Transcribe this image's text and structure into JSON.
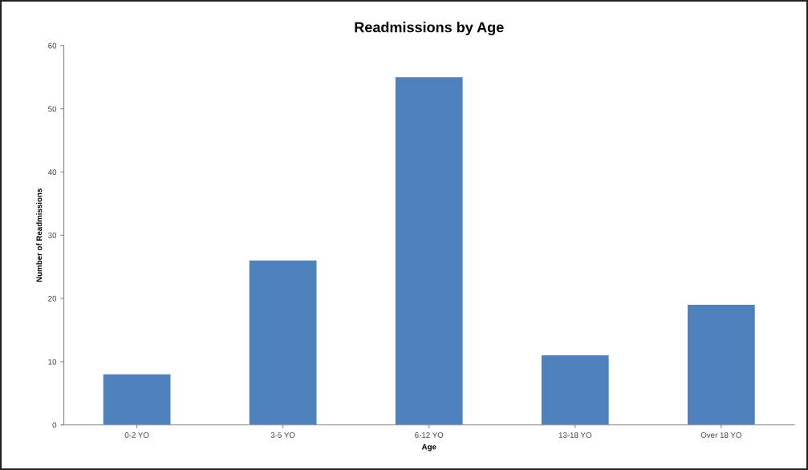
{
  "chart_data": {
    "type": "bar",
    "title": "Readmissions by Age",
    "xlabel": "Age",
    "ylabel": "Number of Readmissions",
    "categories": [
      "0-2 YO",
      "3-5 YO",
      "6-12 YO",
      "13-18 YO",
      "Over 18 YO"
    ],
    "values": [
      8,
      26,
      55,
      11,
      19
    ],
    "color": "#4f81bd",
    "ylim": [
      0,
      60
    ],
    "yticks": [
      0,
      10,
      20,
      30,
      40,
      50,
      60
    ],
    "grid": false
  }
}
